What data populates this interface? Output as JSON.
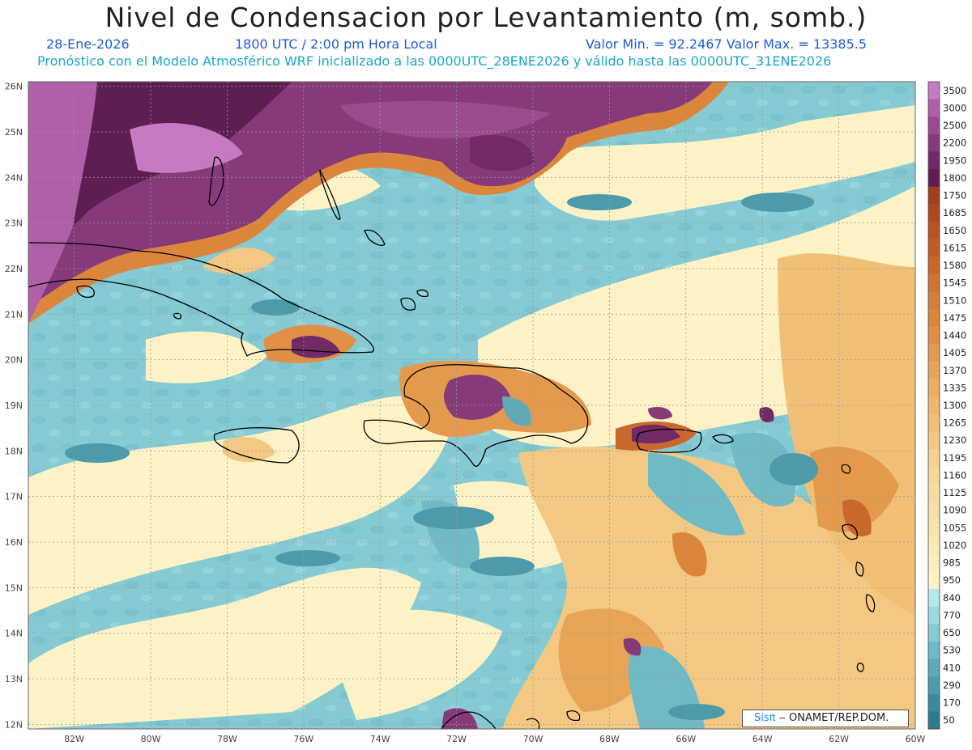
{
  "header": {
    "title": "Nivel de Condensacion por Levantamiento (m, somb.)",
    "date": "28-Ene-2026",
    "time": "1800 UTC / 2:00 pm Hora Local",
    "stats": "Valor Min. = 92.2467   Valor Max. = 13385.5",
    "forecast_line": "Pronóstico con el Modelo Atmosférico WRF inicializado a las 0000UTC_28ENE2026 y válido hasta las  0000UTC_31ENE2026"
  },
  "map": {
    "lon_range": [
      -83.2,
      -60.0
    ],
    "lat_range": [
      11.9,
      26.1
    ],
    "lon_ticks": [
      "82W",
      "80W",
      "78W",
      "76W",
      "74W",
      "72W",
      "70W",
      "68W",
      "66W",
      "64W",
      "62W",
      "60W"
    ],
    "lat_ticks": [
      "26N",
      "25N",
      "24N",
      "23N",
      "22N",
      "21N",
      "20N",
      "19N",
      "18N",
      "17N",
      "16N",
      "15N",
      "14N",
      "13N",
      "12N"
    ]
  },
  "colorbar": {
    "levels": [
      {
        "label": "3500",
        "color": "#c67ac4"
      },
      {
        "label": "3000",
        "color": "#b060a8"
      },
      {
        "label": "2500",
        "color": "#9c4a90"
      },
      {
        "label": "2200",
        "color": "#863a7a"
      },
      {
        "label": "1950",
        "color": "#722a66"
      },
      {
        "label": "1800",
        "color": "#5e1e52"
      },
      {
        "label": "1750",
        "color": "#a0401e"
      },
      {
        "label": "1685",
        "color": "#ab4a20"
      },
      {
        "label": "1650",
        "color": "#b65424"
      },
      {
        "label": "1615",
        "color": "#c05e28"
      },
      {
        "label": "1580",
        "color": "#c8682c"
      },
      {
        "label": "1545",
        "color": "#d07230"
      },
      {
        "label": "1510",
        "color": "#d67c36"
      },
      {
        "label": "1475",
        "color": "#dc863c"
      },
      {
        "label": "1440",
        "color": "#e09044"
      },
      {
        "label": "1405",
        "color": "#e49a4c"
      },
      {
        "label": "1370",
        "color": "#e8a456"
      },
      {
        "label": "1335",
        "color": "#ecae60"
      },
      {
        "label": "1300",
        "color": "#efb86a"
      },
      {
        "label": "1265",
        "color": "#f1c076"
      },
      {
        "label": "1230",
        "color": "#f3c882"
      },
      {
        "label": "1195",
        "color": "#f5d08e"
      },
      {
        "label": "1160",
        "color": "#f6d698"
      },
      {
        "label": "1125",
        "color": "#f7dca2"
      },
      {
        "label": "1090",
        "color": "#f8e0aa"
      },
      {
        "label": "1055",
        "color": "#f9e4b0"
      },
      {
        "label": "1020",
        "color": "#faeab8"
      },
      {
        "label": "985",
        "color": "#fbeebe"
      },
      {
        "label": "950",
        "color": "#fcf2c6"
      },
      {
        "label": "840",
        "color": "#b4e6ec"
      },
      {
        "label": "770",
        "color": "#9cd8e0"
      },
      {
        "label": "650",
        "color": "#86cad4"
      },
      {
        "label": "530",
        "color": "#70bac6"
      },
      {
        "label": "410",
        "color": "#5eaab8"
      },
      {
        "label": "290",
        "color": "#4c9aaa"
      },
      {
        "label": "170",
        "color": "#3c8a9c"
      },
      {
        "label": "50",
        "color": "#2e7a8e"
      }
    ]
  },
  "credit": {
    "logo_text": "Sisπ",
    "org": " ‒ ONAMET/REP.DOM."
  }
}
